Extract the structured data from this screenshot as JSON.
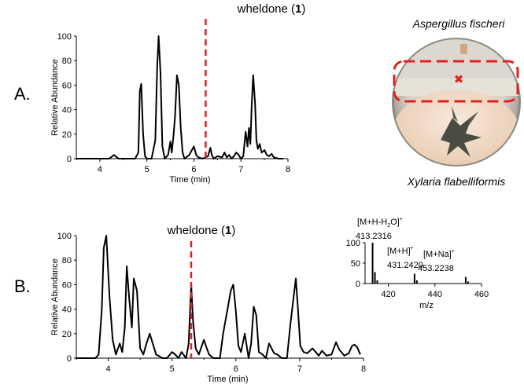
{
  "panel_a": {
    "label": "A.",
    "compound_name": "wheldone",
    "compound_number": "1",
    "species_top": "Aspergillus fischeri",
    "species_bottom": "Xylaria flabelliformis",
    "marker_color": "#e02020"
  },
  "panel_b": {
    "label": "B.",
    "compound_name": "wheldone",
    "compound_number": "1"
  },
  "chart_data": [
    {
      "type": "line",
      "id": "chromatogram-a",
      "xlabel": "Time (min)",
      "ylabel": "Relative Abundance",
      "xlim": [
        3.5,
        8
      ],
      "ylim": [
        0,
        100
      ],
      "xticks": [
        4,
        5,
        6,
        7,
        8
      ],
      "yticks": [
        0,
        20,
        40,
        60,
        80,
        100
      ],
      "marker": {
        "x": 6.25,
        "label": "wheldone (1)",
        "color": "#e02020"
      },
      "series": [
        {
          "name": "chromatogram",
          "x": [
            3.5,
            3.8,
            4.2,
            4.3,
            4.4,
            4.6,
            4.75,
            4.82,
            4.85,
            4.88,
            4.92,
            4.96,
            5.0,
            5.1,
            5.18,
            5.22,
            5.25,
            5.29,
            5.33,
            5.38,
            5.45,
            5.5,
            5.53,
            5.57,
            5.6,
            5.64,
            5.68,
            5.72,
            5.76,
            5.8,
            5.9,
            6.0,
            6.05,
            6.1,
            6.18,
            6.3,
            6.35,
            6.38,
            6.42,
            6.5,
            6.6,
            6.65,
            6.7,
            6.75,
            6.8,
            6.85,
            6.9,
            6.95,
            7.0,
            7.05,
            7.1,
            7.14,
            7.17,
            7.2,
            7.23,
            7.26,
            7.3,
            7.33,
            7.36,
            7.4,
            7.44,
            7.5,
            7.55,
            7.6,
            7.65,
            7.7,
            7.8,
            7.9
          ],
          "y": [
            0,
            0,
            0,
            3,
            0,
            0,
            0,
            5,
            55,
            61,
            20,
            2,
            0,
            0,
            15,
            75,
            100,
            70,
            10,
            0,
            3,
            14,
            5,
            20,
            35,
            68,
            60,
            25,
            5,
            0,
            3,
            10,
            3,
            1,
            0,
            2,
            9,
            3,
            0,
            2,
            1,
            5,
            1,
            3,
            0,
            2,
            5,
            3,
            0,
            2,
            22,
            10,
            25,
            12,
            45,
            68,
            45,
            15,
            8,
            12,
            5,
            7,
            3,
            2,
            4,
            1,
            0,
            0
          ]
        }
      ]
    },
    {
      "type": "line",
      "id": "chromatogram-b",
      "xlabel": "Time (min)",
      "ylabel": "Relative Abundance",
      "xlim": [
        3.5,
        8
      ],
      "ylim": [
        0,
        100
      ],
      "xticks": [
        4,
        5,
        6,
        7,
        8
      ],
      "yticks": [
        0,
        20,
        40,
        60,
        80,
        100
      ],
      "marker": {
        "x": 5.3,
        "label": "wheldone (1)",
        "color": "#e02020"
      },
      "series": [
        {
          "name": "chromatogram",
          "x": [
            3.5,
            3.8,
            3.85,
            3.9,
            3.93,
            3.97,
            4.02,
            4.07,
            4.12,
            4.18,
            4.22,
            4.26,
            4.29,
            4.33,
            4.37,
            4.4,
            4.45,
            4.5,
            4.55,
            4.6,
            4.65,
            4.75,
            4.85,
            4.92,
            5.0,
            5.05,
            5.1,
            5.15,
            5.22,
            5.26,
            5.3,
            5.33,
            5.37,
            5.42,
            5.5,
            5.53,
            5.58,
            5.65,
            5.75,
            5.8,
            5.87,
            5.92,
            5.96,
            6.0,
            6.04,
            6.08,
            6.14,
            6.2,
            6.24,
            6.28,
            6.32,
            6.36,
            6.42,
            6.47,
            6.52,
            6.6,
            6.65,
            6.72,
            6.8,
            6.86,
            6.91,
            6.94,
            6.97,
            7.01,
            7.06,
            7.12,
            7.2,
            7.25,
            7.3,
            7.35,
            7.42,
            7.5,
            7.57,
            7.62,
            7.7,
            7.77,
            7.82,
            7.86,
            7.9,
            7.95
          ],
          "y": [
            0,
            0,
            3,
            40,
            90,
            100,
            50,
            15,
            3,
            12,
            5,
            25,
            75,
            48,
            25,
            65,
            55,
            8,
            3,
            12,
            20,
            3,
            0,
            0,
            5,
            3,
            0,
            5,
            0,
            12,
            60,
            30,
            8,
            3,
            15,
            10,
            3,
            0,
            0,
            20,
            40,
            55,
            60,
            38,
            10,
            5,
            20,
            0,
            12,
            42,
            35,
            5,
            3,
            0,
            12,
            4,
            3,
            0,
            0,
            30,
            52,
            65,
            42,
            10,
            5,
            4,
            8,
            5,
            2,
            6,
            2,
            3,
            13,
            7,
            2,
            4,
            10,
            11,
            9,
            3
          ]
        }
      ]
    },
    {
      "type": "bar",
      "id": "mass-spectrum-inset",
      "xlabel": "m/z",
      "xlim": [
        410,
        460
      ],
      "ylim": [
        0,
        100
      ],
      "xticks": [
        420,
        440,
        460
      ],
      "yticks": [
        0,
        50,
        100
      ],
      "x": [
        413.23,
        414.24,
        415.24,
        431.24,
        432.24,
        453.22,
        454.23
      ],
      "values": [
        100,
        28,
        8,
        24,
        8,
        16,
        5
      ],
      "annotations": [
        {
          "ion": "[M+H-H",
          "sub": "2",
          "ion_end": "O]",
          "charge": "+",
          "mz": "413.2316"
        },
        {
          "ion": "[M+H]",
          "sub": "",
          "ion_end": "",
          "charge": "+",
          "mz": "431.2420"
        },
        {
          "ion": "[M+Na]",
          "sub": "",
          "ion_end": "",
          "charge": "+",
          "mz": "453.2238"
        }
      ]
    }
  ]
}
